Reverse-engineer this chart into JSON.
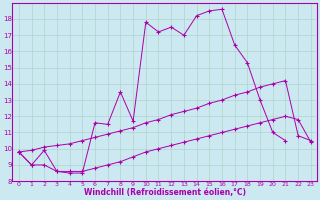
{
  "xlabel": "Windchill (Refroidissement éolien,°C)",
  "background_color": "#cce8f0",
  "grid_color": "#b0d4cc",
  "line_color": "#aa00aa",
  "xlim": [
    -0.5,
    23.5
  ],
  "ylim": [
    8,
    19
  ],
  "xticks": [
    0,
    1,
    2,
    3,
    4,
    5,
    6,
    7,
    8,
    9,
    10,
    11,
    12,
    13,
    14,
    15,
    16,
    17,
    18,
    19,
    20,
    21,
    22,
    23
  ],
  "yticks": [
    8,
    9,
    10,
    11,
    12,
    13,
    14,
    15,
    16,
    17,
    18
  ],
  "series1_x": [
    0,
    1,
    2,
    3,
    4,
    5,
    6,
    7,
    8,
    9,
    10,
    11,
    12,
    13,
    14,
    15,
    16,
    17,
    18,
    19,
    20,
    21
  ],
  "series1_y": [
    9.8,
    9.0,
    9.9,
    8.6,
    8.5,
    8.5,
    11.6,
    11.5,
    13.5,
    11.7,
    17.8,
    17.2,
    17.5,
    17.0,
    18.2,
    18.5,
    18.6,
    16.4,
    15.3,
    13.0,
    11.0,
    10.5
  ],
  "series2_x": [
    0,
    1,
    2,
    3,
    4,
    5,
    6,
    7,
    8,
    9,
    10,
    11,
    12,
    13,
    14,
    15,
    16,
    17,
    18,
    19,
    20,
    21,
    22,
    23
  ],
  "series2_y": [
    9.8,
    9.9,
    10.1,
    10.2,
    10.3,
    10.5,
    10.7,
    10.9,
    11.1,
    11.3,
    11.6,
    11.8,
    12.1,
    12.3,
    12.5,
    12.8,
    13.0,
    13.3,
    13.5,
    13.8,
    14.0,
    14.2,
    10.8,
    10.5
  ],
  "series3_x": [
    0,
    1,
    2,
    3,
    4,
    5,
    6,
    7,
    8,
    9,
    10,
    11,
    12,
    13,
    14,
    15,
    16,
    17,
    18,
    19,
    20,
    21,
    22,
    23
  ],
  "series3_y": [
    9.8,
    9.0,
    9.0,
    8.6,
    8.6,
    8.6,
    8.8,
    9.0,
    9.2,
    9.5,
    9.8,
    10.0,
    10.2,
    10.4,
    10.6,
    10.8,
    11.0,
    11.2,
    11.4,
    11.6,
    11.8,
    12.0,
    11.8,
    10.4
  ]
}
